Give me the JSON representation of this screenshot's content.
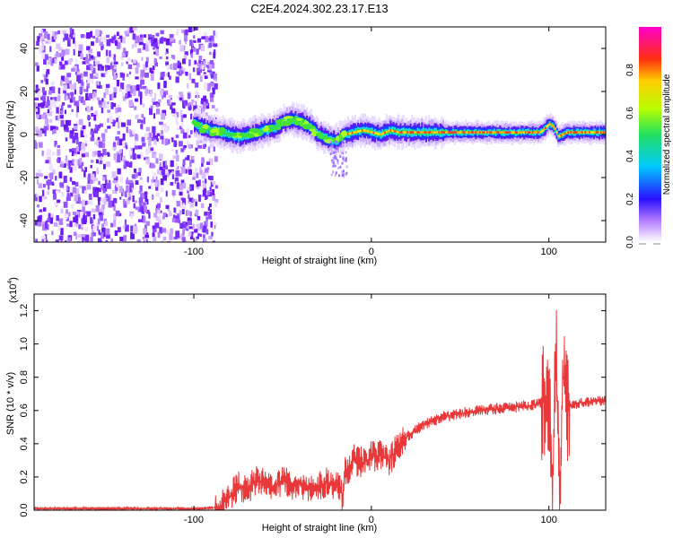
{
  "page_title": "C2E4.2024.302.23.17.E13",
  "chart_data": [
    {
      "type": "heatmap",
      "xlabel": "Height of straight line (km)",
      "ylabel": "Frequency (Hz)",
      "xlim": [
        -190,
        132
      ],
      "ylim": [
        -50,
        50
      ],
      "x_ticks": [
        -100,
        0,
        100
      ],
      "x_tick_labels": [
        "-100",
        "0",
        "100"
      ],
      "y_ticks": [
        -40,
        -20,
        0,
        20,
        40
      ],
      "y_tick_labels": [
        "-40",
        "-20",
        "0",
        "20",
        "40"
      ],
      "noise_region_x": [
        -190,
        -88
      ],
      "ridge": {
        "x": [
          -100,
          -95,
          -90,
          -85,
          -80,
          -75,
          -70,
          -65,
          -60,
          -55,
          -50,
          -45,
          -40,
          -35,
          -30,
          -25,
          -20,
          -15,
          -10,
          -5,
          0,
          5,
          10,
          15,
          20,
          30,
          40,
          50,
          60,
          70,
          80,
          90,
          95,
          100,
          103,
          105,
          110,
          120,
          132
        ],
        "y": [
          5,
          3,
          2,
          1,
          0,
          -1,
          0,
          1,
          2,
          3,
          6,
          7,
          6,
          4,
          0,
          -2,
          -3,
          0,
          1,
          2,
          1,
          0,
          2,
          1,
          1,
          1,
          1,
          1,
          1,
          1,
          1,
          1,
          1,
          5,
          3,
          -1,
          1,
          1,
          1
        ]
      },
      "colorbar": {
        "label": "Normalized spectral amplitude",
        "range": [
          0,
          1
        ],
        "ticks": [
          0.0,
          0.2,
          0.4,
          0.6,
          0.8
        ],
        "tick_labels": [
          "0.0",
          "0.2",
          "0.4",
          "0.6",
          "0.8"
        ],
        "colormap": "rainbow (white-violet-blue-cyan-green-yellow-red-magenta)"
      }
    },
    {
      "type": "line",
      "xlabel": "Height of straight line (km)",
      "ylabel": "SNR (10 * v/v)",
      "y_multiplier_label": "(x10",
      "y_multiplier_exp": "4",
      "y_multiplier_close": ")",
      "xlim": [
        -190,
        132
      ],
      "ylim": [
        0,
        1.3
      ],
      "x_ticks": [
        -100,
        0,
        100
      ],
      "x_tick_labels": [
        "-100",
        "0",
        "100"
      ],
      "y_ticks": [
        0.0,
        0.2,
        0.4,
        0.6,
        0.8,
        1.0,
        1.2
      ],
      "y_tick_labels": [
        "0.0",
        "0.2",
        "0.4",
        "0.6",
        "0.8",
        "1.0",
        "1.2"
      ],
      "series": [
        {
          "color": "#e8383a",
          "x": [
            -190,
            -170,
            -150,
            -130,
            -110,
            -95,
            -85,
            -80,
            -75,
            -70,
            -65,
            -60,
            -55,
            -50,
            -45,
            -40,
            -35,
            -30,
            -25,
            -20,
            -17,
            -16,
            -15,
            -10,
            -5,
            0,
            5,
            10,
            15,
            20,
            25,
            30,
            40,
            50,
            60,
            70,
            80,
            90,
            95,
            98,
            100,
            102,
            104,
            106,
            108,
            110,
            115,
            120,
            132
          ],
          "y": [
            0.01,
            0.01,
            0.01,
            0.01,
            0.01,
            0.01,
            0.02,
            0.08,
            0.15,
            0.12,
            0.18,
            0.16,
            0.14,
            0.18,
            0.15,
            0.16,
            0.13,
            0.14,
            0.17,
            0.15,
            0.14,
            0.03,
            0.22,
            0.3,
            0.28,
            0.32,
            0.33,
            0.3,
            0.38,
            0.44,
            0.48,
            0.52,
            0.56,
            0.58,
            0.6,
            0.61,
            0.62,
            0.63,
            0.64,
            0.66,
            0.68,
            0.05,
            1.0,
            0.03,
            0.8,
            0.62,
            0.64,
            0.65,
            0.66
          ]
        }
      ]
    }
  ]
}
